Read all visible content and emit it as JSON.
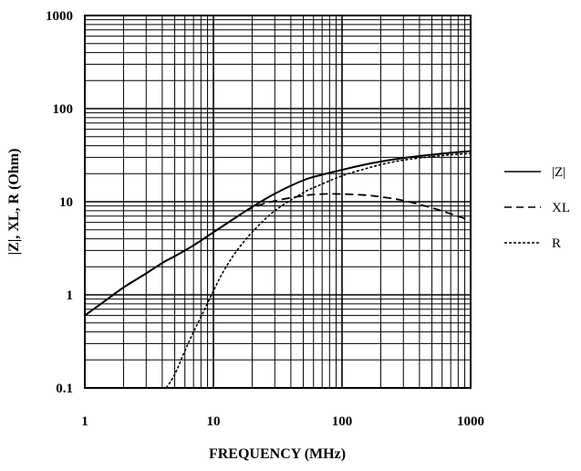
{
  "chart_data": {
    "type": "line",
    "xlabel": "FREQUENCY (MHz)",
    "ylabel": "|Z|, XL, R (Ohm)",
    "x_scale": "log",
    "y_scale": "log",
    "xlim": [
      1,
      1000
    ],
    "ylim": [
      0.1,
      1000
    ],
    "grid": true,
    "legend_position": "right",
    "x_ticks": [
      "1",
      "10",
      "100",
      "1000"
    ],
    "y_ticks": [
      "0.1",
      "1",
      "10",
      "100",
      "1000"
    ],
    "series": [
      {
        "name": "|Z|",
        "style": "solid",
        "x": [
          1,
          1.5,
          2,
          3,
          4,
          5,
          7,
          10,
          15,
          20,
          30,
          50,
          70,
          100,
          150,
          200,
          300,
          500,
          700,
          1000
        ],
        "y": [
          0.6,
          0.9,
          1.2,
          1.7,
          2.2,
          2.6,
          3.4,
          4.7,
          6.8,
          8.8,
          12.2,
          17,
          19.5,
          22,
          25,
          27,
          29.5,
          32,
          33.5,
          35
        ]
      },
      {
        "name": "XL",
        "style": "dashed",
        "x": [
          1,
          1.5,
          2,
          3,
          4,
          5,
          7,
          10,
          15,
          20,
          30,
          50,
          70,
          100,
          150,
          200,
          300,
          500,
          700,
          1000
        ],
        "y": [
          0.6,
          0.9,
          1.2,
          1.7,
          2.2,
          2.6,
          3.4,
          4.7,
          6.8,
          8.6,
          10.2,
          11.6,
          12.1,
          12.1,
          11.8,
          11.3,
          10.3,
          8.6,
          7.4,
          6.3
        ]
      },
      {
        "name": "R",
        "style": "dotted",
        "x": [
          4.3,
          5,
          6,
          7,
          8,
          10,
          12,
          15,
          20,
          30,
          50,
          70,
          100,
          150,
          200,
          300,
          500,
          700,
          1000
        ],
        "y": [
          0.1,
          0.14,
          0.25,
          0.4,
          0.58,
          1.1,
          1.8,
          2.9,
          4.7,
          8,
          12.5,
          15.5,
          19,
          22.5,
          25,
          28,
          30.5,
          32,
          33
        ]
      }
    ]
  }
}
